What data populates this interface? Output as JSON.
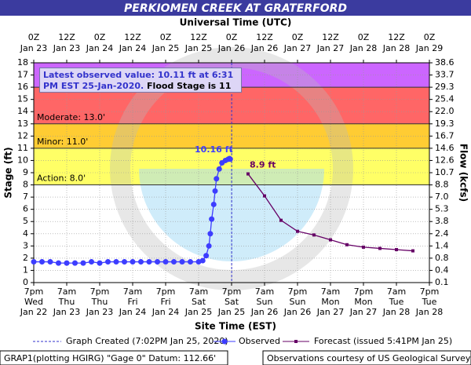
{
  "chart_data": {
    "type": "hydrograph",
    "title": "PERKIOMEN CREEK AT GRATERFORD",
    "x_label_top": "Universal Time (UTC)",
    "x_label_bottom": "Site Time (EST)",
    "y_label": "Stage (ft)",
    "y2_label": "Flow (kcfs)",
    "xlim": [
      "Jan 23 00:00Z",
      "Jan 29 00:00Z"
    ],
    "ylim": [
      0,
      18
    ],
    "yticks": [
      0,
      1,
      2,
      3,
      4,
      5,
      6,
      7,
      8,
      9,
      10,
      11,
      12,
      13,
      14,
      15,
      16,
      17,
      18
    ],
    "y2ticks": [
      0.1,
      0.4,
      0.8,
      1.4,
      2.4,
      3.8,
      5.3,
      {
        "value": 7,
        "label": "7.0"
      },
      8.8,
      10.7,
      12.6,
      14.6,
      16.7,
      19.3,
      {
        "value": 22,
        "label": "22.0"
      },
      25.4,
      29.3,
      33.7,
      38.6
    ],
    "xticks": [
      {
        "value": "Jan 23 00:00Z",
        "label": [
          "0Z",
          "Jan 23"
        ]
      },
      {
        "value": "Jan 23 12:00Z",
        "label": [
          "12Z",
          "Jan 23"
        ]
      },
      {
        "value": "Jan 24 00:00Z",
        "label": [
          "0Z",
          "Jan 24"
        ]
      },
      {
        "value": "Jan 24 12:00Z",
        "label": [
          "12Z",
          "Jan 24"
        ]
      },
      {
        "value": "Jan 25 00:00Z",
        "label": [
          "0Z",
          "Jan 25"
        ]
      },
      {
        "value": "Jan 25 12:00Z",
        "label": [
          "12Z",
          "Jan 25"
        ]
      },
      {
        "value": "Jan 26 00:00Z",
        "label": [
          "0Z",
          "Jan 26"
        ]
      },
      {
        "value": "Jan 26 12:00Z",
        "label": [
          "12Z",
          "Jan 26"
        ]
      },
      {
        "value": "Jan 27 00:00Z",
        "label": [
          "0Z",
          "Jan 27"
        ]
      },
      {
        "value": "Jan 27 12:00Z",
        "label": [
          "12Z",
          "Jan 27"
        ]
      },
      {
        "value": "Jan 28 00:00Z",
        "label": [
          "0Z",
          "Jan 28"
        ]
      },
      {
        "value": "Jan 28 12:00Z",
        "label": [
          "12Z",
          "Jan 28"
        ]
      },
      {
        "value": "Jan 29 00:00Z",
        "label": [
          "0Z",
          "Jan 29"
        ]
      }
    ],
    "x2ticks": [
      {
        "value": "Jan 23 00:00Z",
        "label": [
          "7pm",
          "Wed",
          "Jan 22"
        ]
      },
      {
        "value": "Jan 23 12:00Z",
        "label": [
          "7am",
          "Thu",
          "Jan 23"
        ]
      },
      {
        "value": "Jan 24 00:00Z",
        "label": [
          "7pm",
          "Thu",
          "Jan 23"
        ]
      },
      {
        "value": "Jan 24 12:00Z",
        "label": [
          "7am",
          "Fri",
          "Jan 24"
        ]
      },
      {
        "value": "Jan 25 00:00Z",
        "label": [
          "7pm",
          "Fri",
          "Jan 24"
        ]
      },
      {
        "value": "Jan 25 12:00Z",
        "label": [
          "7am",
          "Sat",
          "Jan 25"
        ]
      },
      {
        "value": "Jan 26 00:00Z",
        "label": [
          "7pm",
          "Sat",
          "Jan 25"
        ]
      },
      {
        "value": "Jan 26 12:00Z",
        "label": [
          "7am",
          "Sun",
          "Jan 26"
        ]
      },
      {
        "value": "Jan 27 00:00Z",
        "label": [
          "7pm",
          "Sun",
          "Jan 26"
        ]
      },
      {
        "value": "Jan 27 12:00Z",
        "label": [
          "7am",
          "Mon",
          "Jan 27"
        ]
      },
      {
        "value": "Jan 28 00:00Z",
        "label": [
          "7pm",
          "Mon",
          "Jan 27"
        ]
      },
      {
        "value": "Jan 28 12:00Z",
        "label": [
          "7am",
          "Tue",
          "Jan 28"
        ]
      },
      {
        "value": "Jan 29 00:00Z",
        "label": [
          "7pm",
          "Tue",
          "Jan 28"
        ]
      }
    ],
    "grid": true,
    "flood_stages": [
      {
        "value": 8,
        "label": "Action: 8.0'",
        "color": "#ffff66"
      },
      {
        "value": 11,
        "label": "Minor: 11.0'",
        "color": "#ffcc33"
      },
      {
        "value": 13,
        "label": "Moderate: 13.0'",
        "color": "#ff6666"
      },
      {
        "value": 16,
        "color": "#cc66ff"
      }
    ],
    "info": {
      "observed": "Latest observed value: 10.11 ft at 6:31 PM EST 25-Jan-2020.",
      "flood": "Flood Stage is 11 ft"
    },
    "created": {
      "name": "Graph Created (7:02PM Jan 25, 2020)",
      "x": "Jan 26 00:02Z",
      "color": "#3333cc"
    },
    "series": [
      {
        "name": "Observed",
        "color": "#3d3dff",
        "x": [
          "Jan 23 00:00Z",
          "Jan 23 03:00Z",
          "Jan 23 06:00Z",
          "Jan 23 09:00Z",
          "Jan 23 12:00Z",
          "Jan 23 15:00Z",
          "Jan 23 18:00Z",
          "Jan 23 21:00Z",
          "Jan 24 00:00Z",
          "Jan 24 03:00Z",
          "Jan 24 06:00Z",
          "Jan 24 09:00Z",
          "Jan 24 12:00Z",
          "Jan 24 15:00Z",
          "Jan 24 18:00Z",
          "Jan 24 21:00Z",
          "Jan 25 00:00Z",
          "Jan 25 03:00Z",
          "Jan 25 06:00Z",
          "Jan 25 09:00Z",
          "Jan 25 12:00Z",
          "Jan 25 13:30Z",
          "Jan 25 14:45Z",
          "Jan 25 15:45Z",
          "Jan 25 16:15Z",
          "Jan 25 16:45Z",
          "Jan 25 17:30Z",
          "Jan 25 18:00Z",
          "Jan 25 18:30Z",
          "Jan 25 19:30Z",
          "Jan 25 20:30Z",
          "Jan 25 21:45Z",
          "Jan 25 22:45Z",
          "Jan 25 23:15Z",
          "Jan 25 23:31Z"
        ],
        "values": [
          1.7,
          1.7,
          1.7,
          1.6,
          1.6,
          1.6,
          1.6,
          1.7,
          1.6,
          1.7,
          1.7,
          1.7,
          1.7,
          1.7,
          1.7,
          1.7,
          1.7,
          1.7,
          1.7,
          1.7,
          1.7,
          1.8,
          2.2,
          3.0,
          4.0,
          5.2,
          6.4,
          7.5,
          8.5,
          9.3,
          9.8,
          10.0,
          10.1,
          10.16,
          10.11
        ]
      },
      {
        "name": "Forecast (issued 5:41PM Jan 25)",
        "color": "#660066",
        "x": [
          "Jan 26 06:00Z",
          "Jan 26 12:00Z",
          "Jan 26 18:00Z",
          "Jan 27 00:00Z",
          "Jan 27 06:00Z",
          "Jan 27 12:00Z",
          "Jan 27 18:00Z",
          "Jan 28 00:00Z",
          "Jan 28 06:00Z",
          "Jan 28 12:00Z",
          "Jan 28 18:00Z"
        ],
        "values": [
          8.9,
          7.1,
          5.1,
          4.2,
          3.9,
          3.5,
          3.1,
          2.9,
          2.8,
          2.7,
          2.6
        ]
      }
    ],
    "annotations": [
      {
        "text": "10.16 ft",
        "x": "Jan 25 23:15Z",
        "y": 10.16,
        "color": "#3d3dff"
      },
      {
        "text": "8.9 ft",
        "x": "Jan 26 06:00Z",
        "y": 8.9,
        "color": "#660066"
      }
    ],
    "footer_left": "GRAP1(plotting HGIRG) \"Gage 0\" Datum: 112.66'",
    "footer_right": "Observations courtesy of US Geological Survey"
  }
}
